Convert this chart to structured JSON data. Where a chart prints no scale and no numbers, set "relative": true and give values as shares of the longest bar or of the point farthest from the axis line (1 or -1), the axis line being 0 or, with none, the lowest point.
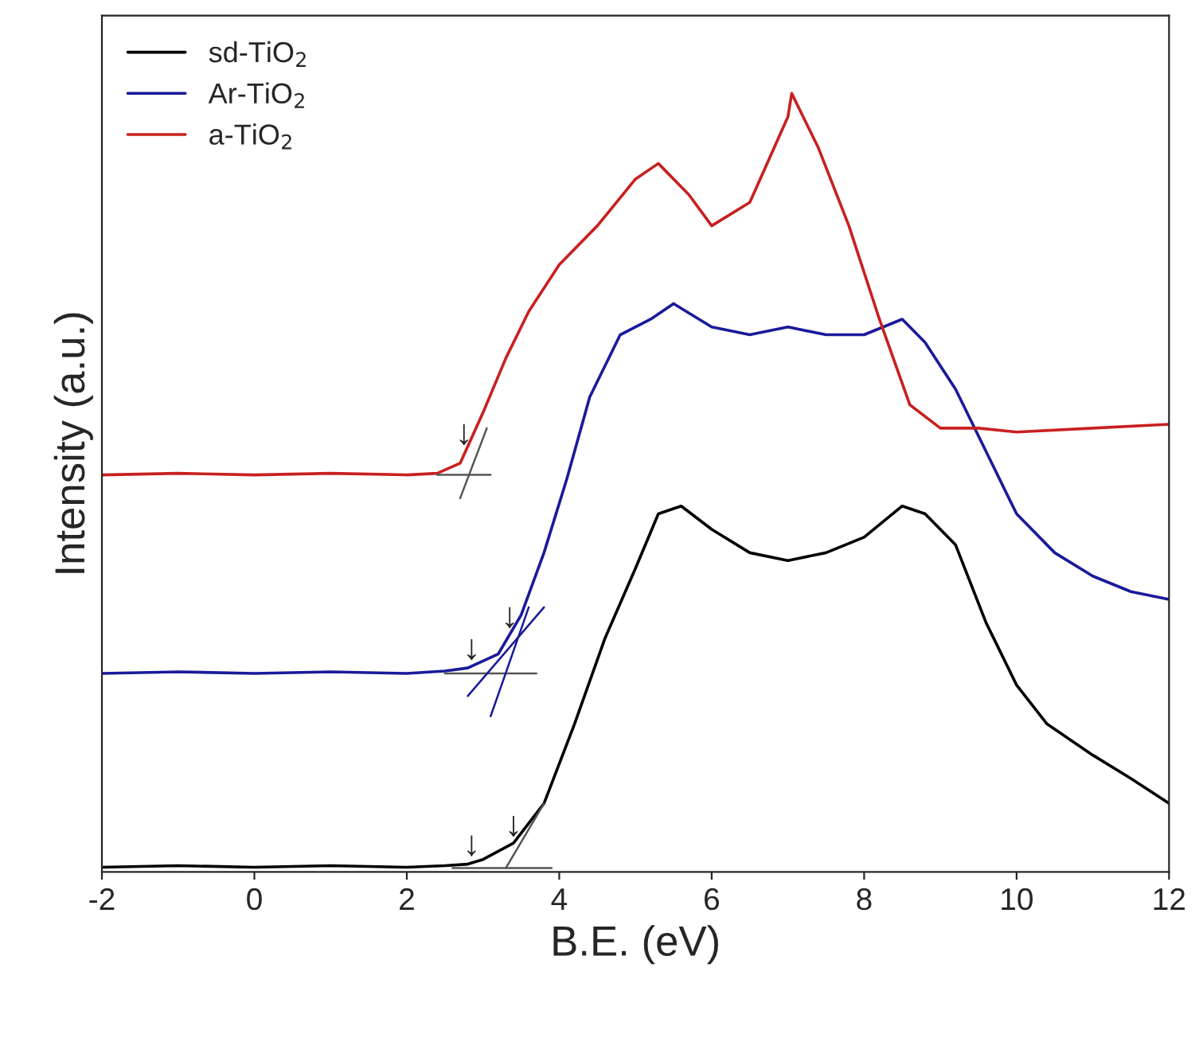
{
  "chart_data": {
    "type": "line",
    "relative": true,
    "xlabel": "B.E. (eV)",
    "ylabel": "Intensity (a.u.)",
    "xlim": [
      -2,
      12
    ],
    "xticks": [
      -2,
      0,
      2,
      4,
      6,
      8,
      10,
      12
    ],
    "legend": "top left",
    "grid": false,
    "marker": "none",
    "line_style": "solid",
    "series": [
      {
        "name": "sd-TiO$_{2}$",
        "color": "#000000",
        "x": [
          -2,
          -1,
          0,
          1,
          2,
          2.5,
          2.8,
          3.0,
          3.4,
          3.8,
          4.2,
          4.6,
          5.0,
          5.3,
          5.6,
          6.0,
          6.5,
          7.0,
          7.5,
          8.0,
          8.5,
          8.8,
          9.2,
          9.6,
          10.0,
          10.4,
          11.0,
          11.5,
          12
        ],
        "values": [
          0.006,
          0.008,
          0.006,
          0.008,
          0.006,
          0.008,
          0.01,
          0.016,
          0.037,
          0.088,
          0.19,
          0.3,
          0.39,
          0.46,
          0.47,
          0.44,
          0.41,
          0.4,
          0.41,
          0.43,
          0.47,
          0.46,
          0.42,
          0.32,
          0.24,
          0.19,
          0.15,
          0.12,
          0.088
        ]
      },
      {
        "name": "Ar-TiO$_{2}$",
        "color": "#1a1a9a",
        "x": [
          -2,
          -1,
          0,
          1,
          2,
          2.5,
          2.8,
          3.2,
          3.5,
          3.8,
          4.1,
          4.4,
          4.8,
          5.2,
          5.5,
          6.0,
          6.5,
          7.0,
          7.5,
          8.0,
          8.5,
          8.8,
          9.2,
          9.6,
          10.0,
          10.5,
          11.0,
          11.5,
          12
        ],
        "values": [
          0.255,
          0.257,
          0.255,
          0.257,
          0.255,
          0.258,
          0.262,
          0.28,
          0.33,
          0.41,
          0.505,
          0.61,
          0.69,
          0.71,
          0.73,
          0.7,
          0.69,
          0.7,
          0.69,
          0.69,
          0.71,
          0.68,
          0.62,
          0.54,
          0.46,
          0.41,
          0.38,
          0.36,
          0.35
        ]
      },
      {
        "name": "a-TiO$_{2}$",
        "color": "#c82020",
        "x": [
          -2,
          -1,
          0,
          1,
          2,
          2.4,
          2.7,
          3.0,
          3.3,
          3.6,
          4.0,
          4.5,
          5.0,
          5.3,
          5.7,
          6.0,
          6.5,
          7.0,
          7.05,
          7.4,
          7.8,
          8.2,
          8.6,
          9.0,
          9.5,
          10,
          11,
          12
        ],
        "values": [
          0.51,
          0.512,
          0.51,
          0.512,
          0.51,
          0.512,
          0.525,
          0.59,
          0.66,
          0.72,
          0.78,
          0.83,
          0.89,
          0.91,
          0.87,
          0.83,
          0.86,
          0.97,
          1.0,
          0.93,
          0.83,
          0.71,
          0.6,
          0.57,
          0.57,
          0.565,
          0.57,
          0.575
        ]
      },
      {
        "color": "#555555",
        "x": [
          2.4,
          3.1
        ],
        "values": [
          0.51,
          0.51
        ]
      },
      {
        "color": "#555555",
        "x": [
          2.7,
          3.05
        ],
        "values": [
          0.48,
          0.57
        ]
      },
      {
        "color": "#555555",
        "x": [
          2.5,
          3.7
        ],
        "values": [
          0.255,
          0.255
        ]
      },
      {
        "color": "#1a1a9a",
        "x": [
          2.8,
          3.8
        ],
        "values": [
          0.226,
          0.34
        ]
      },
      {
        "color": "#1a1a9a",
        "x": [
          3.1,
          3.6
        ],
        "values": [
          0.2,
          0.34
        ]
      },
      {
        "color": "#555555",
        "x": [
          2.6,
          3.9
        ],
        "values": [
          0.005,
          0.005
        ]
      },
      {
        "color": "#555555",
        "x": [
          3.3,
          3.8
        ],
        "values": [
          0.005,
          0.088
        ]
      }
    ],
    "annotations": [
      {
        "text": "↓",
        "x": 2.75,
        "y": 0.54
      },
      {
        "text": "↓",
        "x": 3.35,
        "y": 0.305
      },
      {
        "text": "↓",
        "x": 2.85,
        "y": 0.264
      },
      {
        "text": "↓",
        "x": 3.4,
        "y": 0.037
      },
      {
        "text": "↓",
        "x": 2.85,
        "y": 0.012
      }
    ]
  }
}
